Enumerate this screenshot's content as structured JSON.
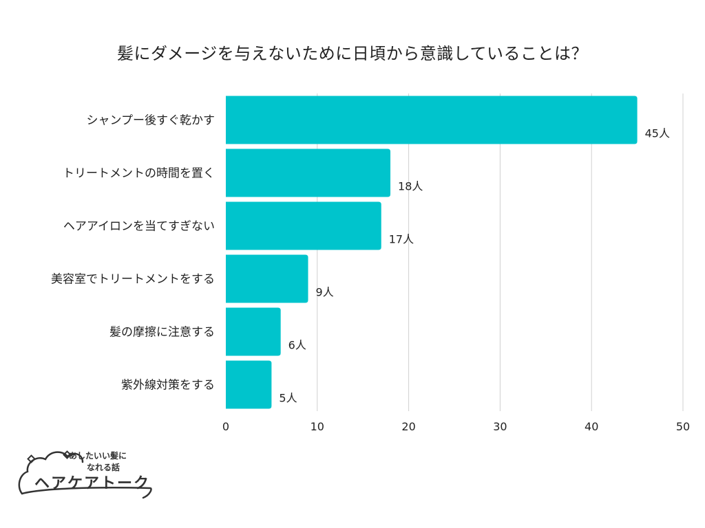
{
  "chart_data": {
    "type": "bar",
    "orientation": "horizontal",
    "title": "髪にダメージを与えないために日頃から意識していることは？",
    "categories": [
      "シャンプー後すぐ乾かす",
      "トリートメントの時間を置く",
      "ヘアアイロンを当てすぎない",
      "美容室でトリートメントをする",
      "髪の摩擦に注意する",
      "紫外線対策をする"
    ],
    "values": [
      45,
      18,
      17,
      9,
      6,
      5
    ],
    "value_labels": [
      "45人",
      "18人",
      "17人",
      "9人",
      "6人",
      "5人"
    ],
    "xlim": [
      0,
      50
    ],
    "xticks": [
      0,
      10,
      20,
      30,
      40,
      50
    ],
    "grid": "vertical",
    "bar_color": "#00c4cc"
  },
  "logo": {
    "tagline_line1": "あしたいい髪に",
    "tagline_line2": "なれる話",
    "name": "ヘアケアトーク"
  }
}
